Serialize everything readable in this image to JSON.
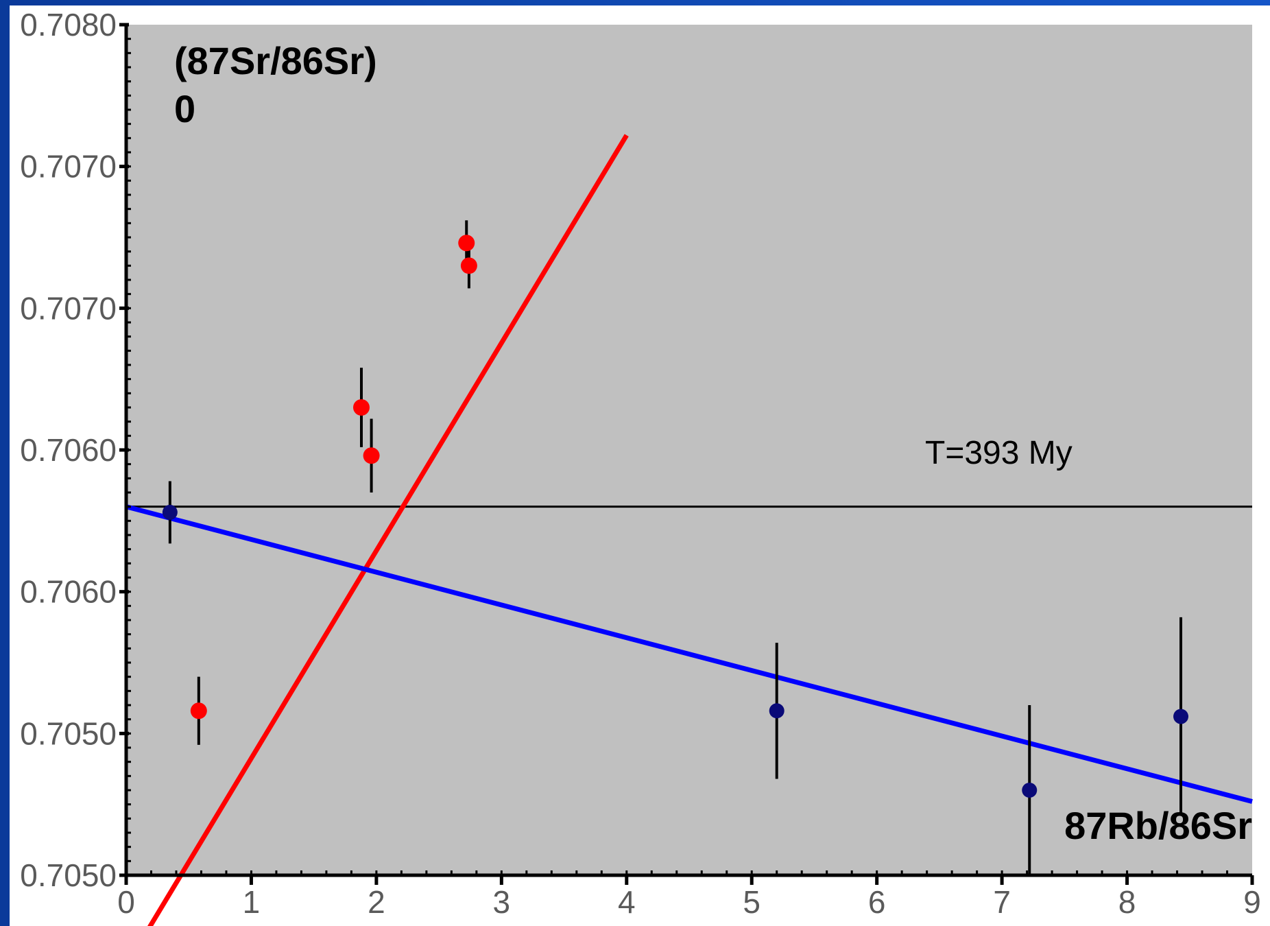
{
  "chart_data": {
    "type": "scatter",
    "x_ticks": [
      "0",
      "1",
      "2",
      "3",
      "4",
      "5",
      "6",
      "7",
      "8",
      "9"
    ],
    "y_ticks": [
      "0.7050",
      "0.7050",
      "0.7060",
      "0.7060",
      "0.7070",
      "0.7070",
      "0.7080"
    ],
    "xlim": [
      0,
      9
    ],
    "annotations": {
      "ylabel_top": "(87Sr/86Sr)",
      "ylabel_sub": "0",
      "xlabel": "87Rb/86Sr",
      "horizontal_line_label": "T=393 My"
    },
    "y_tick_values": [
      0.705,
      0.7055,
      0.706,
      0.7065,
      0.707,
      0.7075,
      0.708
    ],
    "ylim": [
      0.705,
      0.708
    ],
    "grid": false,
    "colors": {
      "plot_background": "#c0c0c0",
      "red_series": "#ff0000",
      "blue_series": "#0000ff",
      "blue_points": "#0a0a78",
      "reference_line": "#000000"
    },
    "series": [
      {
        "color": "#ff0000",
        "points": [
          {
            "x": 0.58,
            "y": 0.70558,
            "err": 0.00012
          },
          {
            "x": 1.88,
            "y": 0.70665,
            "err": 0.00014
          },
          {
            "x": 1.96,
            "y": 0.70648,
            "err": 0.00013
          },
          {
            "x": 2.72,
            "y": 0.70723,
            "err": 8e-05
          },
          {
            "x": 2.74,
            "y": 0.70715,
            "err": 8e-05
          }
        ],
        "fit_line": {
          "x": [
            0,
            4.0
          ],
          "y": [
            0.70468,
            0.70761
          ]
        }
      },
      {
        "color": "#0000ff",
        "points": [
          {
            "x": 0.35,
            "y": 0.70628,
            "err": 0.00011
          },
          {
            "x": 5.2,
            "y": 0.70558,
            "err": 0.00024
          },
          {
            "x": 7.22,
            "y": 0.7053,
            "err": 0.0003
          },
          {
            "x": 8.43,
            "y": 0.70556,
            "err": 0.00035
          }
        ],
        "fit_line": {
          "x": [
            0,
            9.0
          ],
          "y": [
            0.7063,
            0.70526
          ]
        }
      }
    ],
    "horizontal_line": {
      "y": 0.7063
    }
  }
}
